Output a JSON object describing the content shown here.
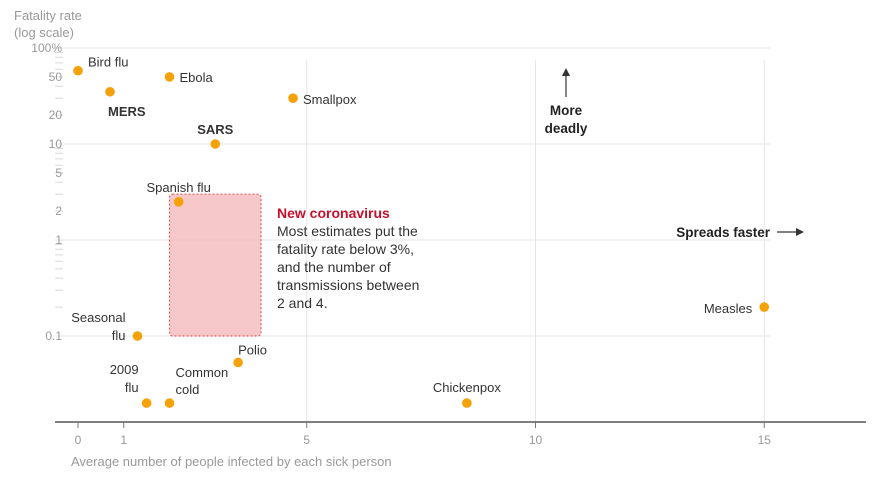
{
  "chart_data": {
    "type": "scatter",
    "title": "",
    "ylabel_line1": "Fatality rate",
    "ylabel_line2": "(log scale)",
    "xlabel": "Average number of people infected by each sick person",
    "x_ticks": [
      0,
      1,
      5,
      10,
      15
    ],
    "x_range": [
      -0.5,
      17
    ],
    "y_scale": "log",
    "y_range": [
      0.01,
      100
    ],
    "y_ticks": [
      {
        "value": 100,
        "label": "100%"
      },
      {
        "value": 50,
        "label": "50"
      },
      {
        "value": 20,
        "label": "20"
      },
      {
        "value": 10,
        "label": "10"
      },
      {
        "value": 5,
        "label": "5"
      },
      {
        "value": 2,
        "label": "2"
      },
      {
        "value": 1,
        "label": "1"
      },
      {
        "value": 0.1,
        "label": "0.1"
      }
    ],
    "grid": true,
    "point_color": "#f5a10a",
    "points": [
      {
        "name": "Bird flu",
        "lines": [
          "Bird flu"
        ],
        "x": 0.0,
        "y": 58,
        "bold": false
      },
      {
        "name": "MERS",
        "lines": [
          "MERS"
        ],
        "x": 0.7,
        "y": 35,
        "bold": true
      },
      {
        "name": "Ebola",
        "lines": [
          "Ebola"
        ],
        "x": 2.0,
        "y": 50,
        "bold": false
      },
      {
        "name": "Smallpox",
        "lines": [
          "Smallpox"
        ],
        "x": 4.7,
        "y": 30,
        "bold": false
      },
      {
        "name": "SARS",
        "lines": [
          "SARS"
        ],
        "x": 3.0,
        "y": 10,
        "bold": true
      },
      {
        "name": "Spanish flu",
        "lines": [
          "Spanish flu"
        ],
        "x": 2.2,
        "y": 2.5,
        "bold": false
      },
      {
        "name": "Seasonal flu",
        "lines": [
          "Seasonal",
          "flu"
        ],
        "x": 1.3,
        "y": 0.1,
        "bold": false
      },
      {
        "name": "Polio",
        "lines": [
          "Polio"
        ],
        "x": 3.5,
        "y": 0.053,
        "bold": false
      },
      {
        "name": "2009 flu",
        "lines": [
          "2009",
          "flu"
        ],
        "x": 1.5,
        "y": 0.02,
        "bold": false
      },
      {
        "name": "Common cold",
        "lines": [
          "Common",
          "cold"
        ],
        "x": 2.0,
        "y": 0.02,
        "bold": false
      },
      {
        "name": "Chickenpox",
        "lines": [
          "Chickenpox"
        ],
        "x": 8.5,
        "y": 0.02,
        "bold": false
      },
      {
        "name": "Measles",
        "lines": [
          "Measles"
        ],
        "x": 15.0,
        "y": 0.2,
        "bold": false
      }
    ],
    "highlight_region": {
      "x": [
        2,
        4
      ],
      "y": [
        0.1,
        3
      ],
      "color": "#f4b6b8",
      "border_color": "#e06060",
      "title": "New coronavirus",
      "lines": [
        "Most estimates put the",
        "fatality rate below 3%,",
        "and the number of",
        "transmissions between",
        "2 and 4."
      ]
    },
    "annotations": {
      "more_deadly": [
        "More",
        "deadly"
      ],
      "spreads_faster": "Spreads faster"
    }
  }
}
